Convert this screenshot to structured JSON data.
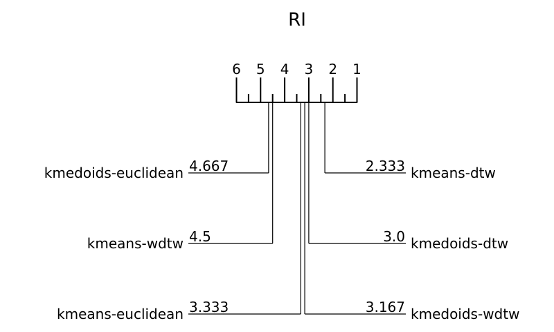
{
  "chart_data": {
    "type": "critical-difference-diagram",
    "title": "RI",
    "axis": {
      "min_rank": 1,
      "max_rank": 6,
      "reversed": true,
      "tick_labels": [
        "6",
        "5",
        "4",
        "3",
        "2",
        "1"
      ]
    },
    "left_methods": [
      {
        "name": "kmedoids-euclidean",
        "rank": 4.667,
        "rank_label": "4.667"
      },
      {
        "name": "kmeans-wdtw",
        "rank": 4.5,
        "rank_label": "4.5"
      },
      {
        "name": "kmeans-euclidean",
        "rank": 3.333,
        "rank_label": "3.333"
      }
    ],
    "right_methods": [
      {
        "name": "kmeans-dtw",
        "rank": 2.333,
        "rank_label": "2.333"
      },
      {
        "name": "kmedoids-dtw",
        "rank": 3.0,
        "rank_label": "3.0"
      },
      {
        "name": "kmedoids-wdtw",
        "rank": 3.167,
        "rank_label": "3.167"
      }
    ]
  }
}
